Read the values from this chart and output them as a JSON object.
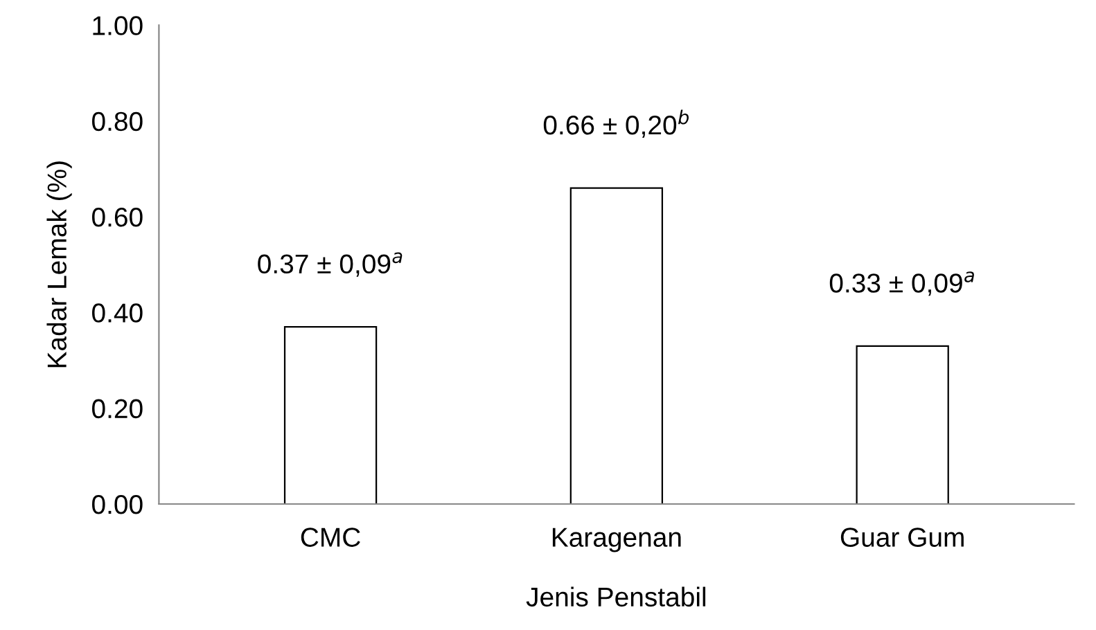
{
  "chart_data": {
    "type": "bar",
    "xlabel": "Jenis Penstabil",
    "ylabel": "Kadar Lemak (%)",
    "categories": [
      "CMC",
      "Karagenan",
      "Guar Gum"
    ],
    "values": [
      0.37,
      0.66,
      0.33
    ],
    "color": "#ffffff",
    "value_labels": [
      "0.37 ± 0,09$^{a}$",
      "0.66 ± 0,20$^{b}$",
      "0.33 ± 0,09$^{a}$"
    ],
    "ylim": [
      0,
      1
    ],
    "yticks": [
      {
        "value": 0,
        "label": "0.00"
      },
      {
        "value": 0.2,
        "label": "0.20"
      },
      {
        "value": 0.4,
        "label": "0.40"
      },
      {
        "value": 0.6,
        "label": "0.60"
      },
      {
        "value": 0.8,
        "label": "0.80"
      },
      {
        "value": 1,
        "label": "1.00"
      }
    ],
    "grid": false,
    "legend": false
  }
}
